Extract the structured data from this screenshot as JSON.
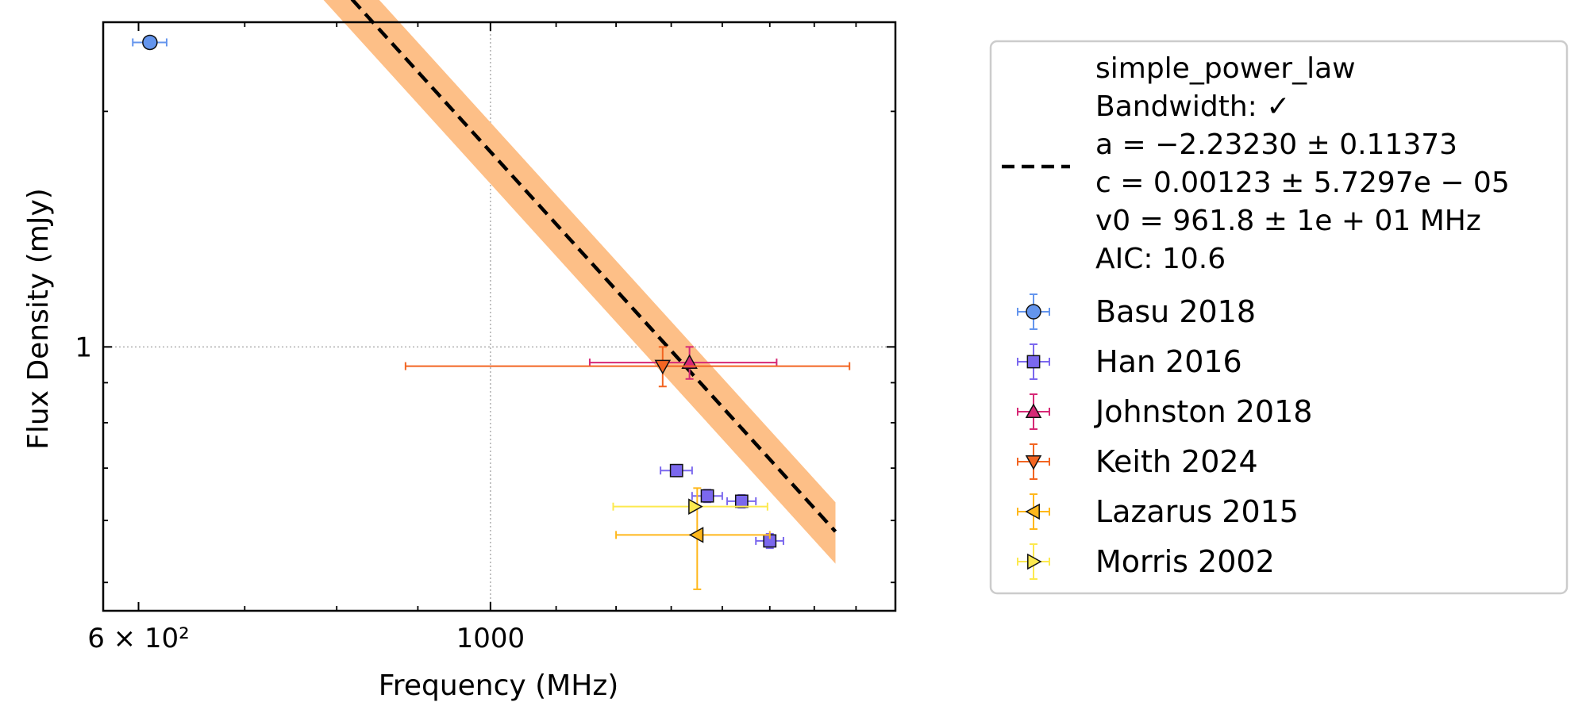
{
  "chart_data": {
    "type": "scatter",
    "xlabel": "Frequency (MHz)",
    "ylabel": "Flux Density (mJy)",
    "x_scale": "log",
    "y_scale": "log",
    "xlim": [
      570,
      1800
    ],
    "ylim": [
      0.46,
      2.6
    ],
    "x_ticks": [
      {
        "value": 600,
        "label": "6 × 10²"
      },
      {
        "value": 1000,
        "label": "1000"
      }
    ],
    "y_ticks": [
      {
        "value": 1,
        "label": "1"
      }
    ],
    "grid": true,
    "legend_position": "outside-right",
    "fit": {
      "name": "simple_power_law",
      "label_lines": [
        "simple_power_law",
        "Bandwidth: ✓",
        "a = −2.23230 ± 0.11373",
        "c = 0.00123 ± 5.7297e − 05",
        "v0 = 961.8 ± 1e + 01 MHz",
        "AIC: 10.6"
      ],
      "a": -2.2323,
      "c": 0.00123,
      "v0": 961.8,
      "x_range": [
        600,
        1650
      ],
      "band_fraction": 0.045,
      "line_color": "#000000",
      "band_color": "#fdbf87"
    },
    "series": [
      {
        "name": "Basu 2018",
        "marker": "circle",
        "color": "#6495ed",
        "points": [
          {
            "x": 610,
            "y": 2.45,
            "xerr": 15,
            "yerr": 0.0
          }
        ]
      },
      {
        "name": "Han 2016",
        "marker": "square",
        "color": "#7b68ee",
        "points": [
          {
            "x": 1310,
            "y": 0.695,
            "xerr": 30,
            "yerr": 0.012
          },
          {
            "x": 1370,
            "y": 0.645,
            "xerr": 30,
            "yerr": 0.012
          },
          {
            "x": 1440,
            "y": 0.635,
            "xerr": 30,
            "yerr": 0.012
          },
          {
            "x": 1500,
            "y": 0.565,
            "xerr": 30,
            "yerr": 0.012
          }
        ]
      },
      {
        "name": "Johnston 2018",
        "marker": "triangle-up",
        "color": "#d62976",
        "points": [
          {
            "x": 1335,
            "y": 0.955,
            "xerr": 180,
            "yerr": 0.045
          }
        ]
      },
      {
        "name": "Keith 2024",
        "marker": "triangle-down",
        "color": "#f26522",
        "points": [
          {
            "x": 1284,
            "y": 0.945,
            "xerr": 400,
            "yerr": 0.055
          }
        ]
      },
      {
        "name": "Lazarus 2015",
        "marker": "triangle-left",
        "color": "#ffb81c",
        "points": [
          {
            "x": 1350,
            "y": 0.575,
            "xerr": 150,
            "yerr": 0.085
          }
        ]
      },
      {
        "name": "Morris 2002",
        "marker": "triangle-right",
        "color": "#fce94f",
        "points": [
          {
            "x": 1345,
            "y": 0.625,
            "xerr": 150,
            "yerr": 0.0
          }
        ]
      }
    ]
  }
}
